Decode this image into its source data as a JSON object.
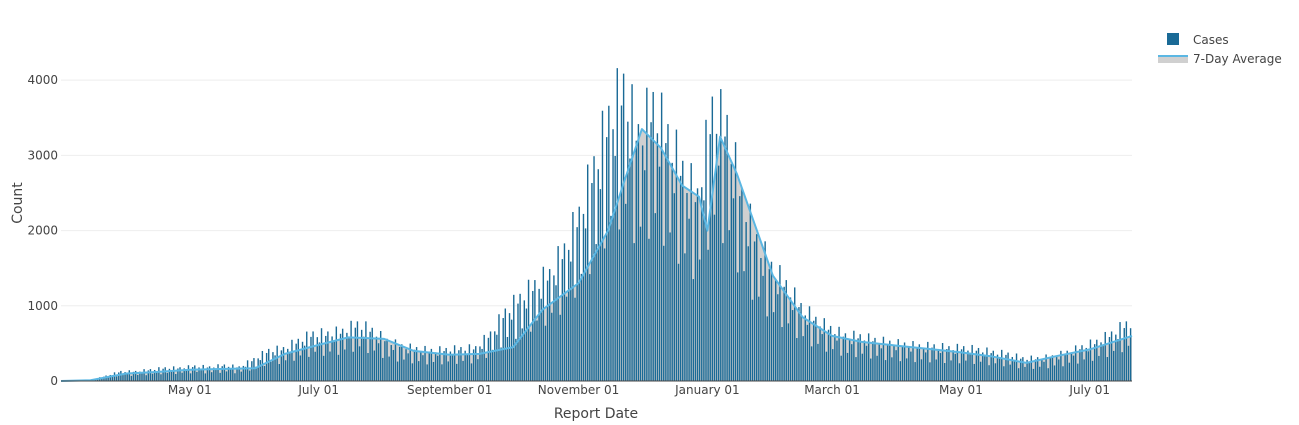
{
  "chart_data": {
    "type": "bar",
    "xlabel": "Report Date",
    "ylabel": "Count",
    "ylim": [
      0,
      4800
    ],
    "x_range": [
      "2020-03-01",
      "2021-07-21"
    ],
    "y_ticks": [
      0,
      1000,
      2000,
      3000,
      4000
    ],
    "y_tick_labels": [
      "0",
      "1000",
      "2000",
      "3000",
      "4000"
    ],
    "x_ticks": [
      "2020-05-01",
      "2020-07-01",
      "2020-09-01",
      "2020-11-01",
      "2021-01-01",
      "2021-03-01",
      "2021-05-01",
      "2021-07-01"
    ],
    "x_tick_labels": [
      "May 01",
      "July 01",
      "September 01",
      "November 01",
      "January 01",
      "March 01",
      "May 01",
      "July 01"
    ],
    "grid": "horizontal",
    "legend_position": "top-right",
    "series": [
      {
        "name": "Cases",
        "type": "bar",
        "color": "#1a6a96",
        "x": [
          "2020-03-15",
          "2020-03-22",
          "2020-03-29",
          "2020-04-05",
          "2020-04-12",
          "2020-04-19",
          "2020-04-26",
          "2020-05-03",
          "2020-05-10",
          "2020-05-17",
          "2020-05-24",
          "2020-05-31",
          "2020-06-07",
          "2020-06-14",
          "2020-06-21",
          "2020-06-28",
          "2020-07-05",
          "2020-07-12",
          "2020-07-19",
          "2020-07-26",
          "2020-08-02",
          "2020-08-09",
          "2020-08-16",
          "2020-08-23",
          "2020-08-30",
          "2020-09-06",
          "2020-09-13",
          "2020-09-20",
          "2020-09-27",
          "2020-10-04",
          "2020-10-11",
          "2020-10-18",
          "2020-10-25",
          "2020-11-01",
          "2020-11-08",
          "2020-11-15",
          "2020-11-22",
          "2020-11-29",
          "2020-12-06",
          "2020-12-13",
          "2020-12-20",
          "2020-12-27",
          "2021-01-03",
          "2021-01-10",
          "2021-01-17",
          "2021-01-24",
          "2021-01-31",
          "2021-02-07",
          "2021-02-14",
          "2021-02-21",
          "2021-02-28",
          "2021-03-07",
          "2021-03-14",
          "2021-03-21",
          "2021-03-28",
          "2021-04-04",
          "2021-04-11",
          "2021-04-18",
          "2021-04-25",
          "2021-05-02",
          "2021-05-09",
          "2021-05-16",
          "2021-05-23",
          "2021-05-30",
          "2021-06-06",
          "2021-06-13",
          "2021-06-20",
          "2021-06-27",
          "2021-07-04",
          "2021-07-11",
          "2021-07-18"
        ],
        "values": [
          10,
          60,
          110,
          110,
          130,
          150,
          150,
          170,
          160,
          180,
          160,
          250,
          350,
          370,
          460,
          540,
          540,
          570,
          650,
          580,
          460,
          400,
          370,
          350,
          360,
          370,
          380,
          540,
          790,
          950,
          1100,
          1220,
          1500,
          1900,
          2450,
          3000,
          3350,
          2800,
          3150,
          2800,
          2400,
          2100,
          3100,
          2900,
          2100,
          1600,
          1300,
          1100,
          850,
          700,
          600,
          520,
          510,
          470,
          440,
          420,
          400,
          400,
          380,
          380,
          360,
          330,
          310,
          260,
          260,
          280,
          330,
          390,
          450,
          540,
          650
        ]
      },
      {
        "name": "7-Day Average",
        "type": "line",
        "color": "#5bb7e3",
        "fill": "#d0d0d0",
        "x": [
          "2020-03-01",
          "2020-03-15",
          "2020-04-01",
          "2020-04-15",
          "2020-05-01",
          "2020-05-15",
          "2020-06-01",
          "2020-06-15",
          "2020-07-01",
          "2020-07-15",
          "2020-08-01",
          "2020-08-15",
          "2020-09-01",
          "2020-09-15",
          "2020-10-01",
          "2020-10-15",
          "2020-11-01",
          "2020-11-15",
          "2020-11-22",
          "2020-12-01",
          "2020-12-10",
          "2020-12-20",
          "2020-12-28",
          "2021-01-01",
          "2021-01-07",
          "2021-01-15",
          "2021-02-01",
          "2021-02-15",
          "2021-03-01",
          "2021-03-15",
          "2021-04-01",
          "2021-04-15",
          "2021-05-01",
          "2021-05-15",
          "2021-06-01",
          "2021-06-15",
          "2021-07-01",
          "2021-07-21"
        ],
        "values": [
          0,
          10,
          100,
          120,
          150,
          160,
          170,
          360,
          480,
          580,
          560,
          400,
          350,
          360,
          450,
          950,
          1300,
          2000,
          2600,
          3350,
          3100,
          2600,
          2450,
          2000,
          3250,
          2750,
          1400,
          850,
          600,
          520,
          470,
          430,
          380,
          330,
          240,
          330,
          420,
          600
        ]
      }
    ]
  }
}
